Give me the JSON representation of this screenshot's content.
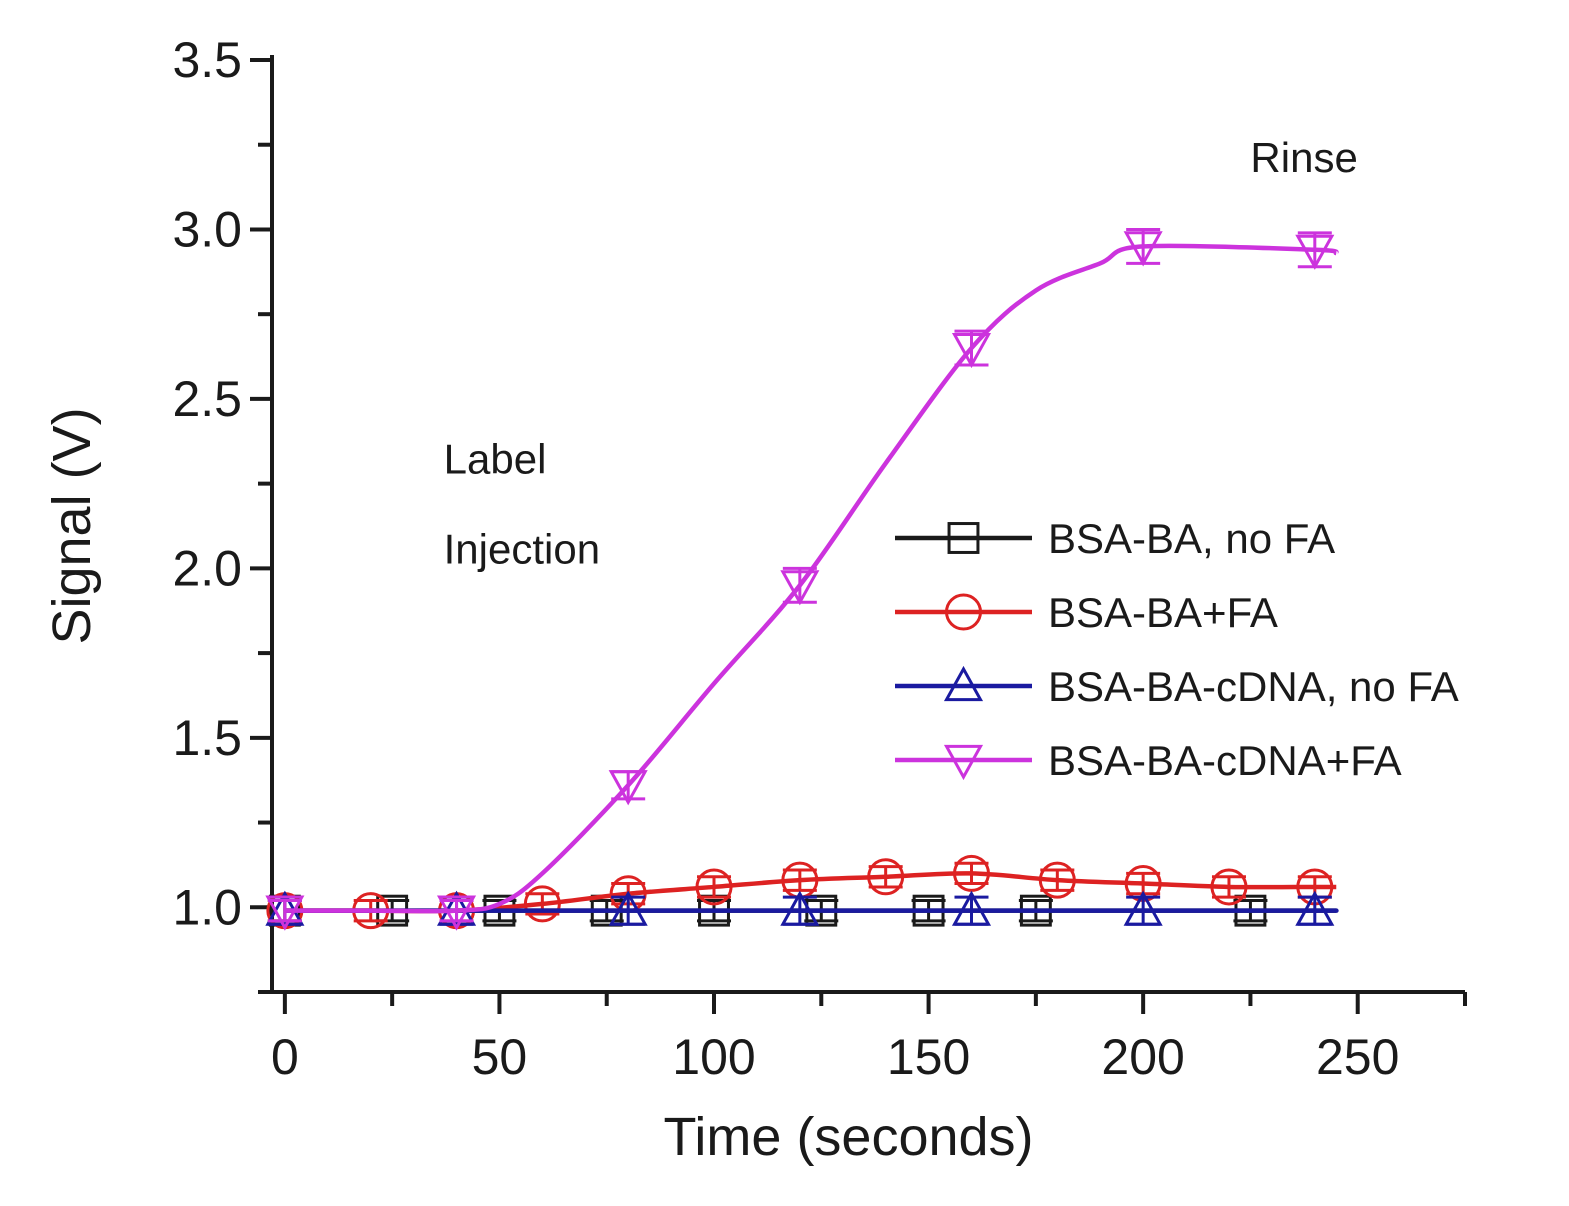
{
  "chart_data": {
    "type": "line",
    "title": "",
    "xlabel": "Time (seconds)",
    "ylabel": "Signal (V)",
    "xlim": [
      -3,
      275
    ],
    "ylim": [
      0.75,
      3.5
    ],
    "x_ticks": [
      0,
      50,
      100,
      150,
      200,
      250
    ],
    "x_tick_labels": [
      "0",
      "50",
      "100",
      "150",
      "200",
      "250"
    ],
    "y_ticks": [
      1.0,
      1.5,
      2.0,
      2.5,
      3.0,
      3.5
    ],
    "y_tick_labels": [
      "1.0",
      "1.5",
      "2.0",
      "2.5",
      "3.0",
      "3.5"
    ],
    "grid": false,
    "legend_position": "center-right",
    "annotations": [
      {
        "id": "label-injection",
        "lines": [
          "Label",
          "Injection"
        ],
        "x": 37,
        "y": 2.28
      },
      {
        "id": "rinse",
        "lines": [
          "Rinse"
        ],
        "x": 225,
        "y": 3.17
      }
    ],
    "series": [
      {
        "name": "BSA-BA, no FA",
        "color": "#1a1a1a",
        "marker": "square",
        "x": [
          0,
          25,
          50,
          75,
          100,
          125,
          150,
          175,
          200,
          225,
          240,
          245
        ],
        "y": [
          0.99,
          0.99,
          0.99,
          0.99,
          0.99,
          0.99,
          0.99,
          0.99,
          0.99,
          0.99,
          0.99,
          0.99
        ],
        "err": [
          0.03,
          0.03,
          0.03,
          0.03,
          0.03,
          0.03,
          0.03,
          0.03,
          0.03,
          0.03,
          0.03,
          0.03
        ],
        "marker_x": [
          0,
          25,
          50,
          75,
          100,
          125,
          150,
          175,
          225
        ]
      },
      {
        "name": "BSA-BA+FA",
        "color": "#dd2222",
        "marker": "circle",
        "x": [
          0,
          20,
          40,
          60,
          80,
          100,
          120,
          140,
          160,
          180,
          200,
          220,
          240,
          245
        ],
        "y": [
          0.99,
          0.99,
          0.99,
          1.01,
          1.04,
          1.06,
          1.08,
          1.09,
          1.1,
          1.08,
          1.07,
          1.06,
          1.06,
          1.06
        ],
        "err": [
          0.03,
          0.03,
          0.03,
          0.03,
          0.03,
          0.03,
          0.03,
          0.03,
          0.03,
          0.03,
          0.03,
          0.03,
          0.03,
          0.03
        ],
        "marker_x": [
          0,
          20,
          40,
          60,
          80,
          100,
          120,
          140,
          160,
          180,
          200,
          220,
          240
        ]
      },
      {
        "name": "BSA-BA-cDNA, no FA",
        "color": "#1a1aa0",
        "marker": "triangle-up",
        "x": [
          0,
          40,
          80,
          120,
          160,
          200,
          240,
          245
        ],
        "y": [
          0.99,
          0.99,
          0.99,
          0.99,
          0.99,
          0.99,
          0.99,
          0.99
        ],
        "err": [
          0.04,
          0.04,
          0.04,
          0.04,
          0.04,
          0.04,
          0.04,
          0.04
        ],
        "marker_x": [
          0,
          40,
          80,
          120,
          160,
          200,
          240
        ]
      },
      {
        "name": "BSA-BA-cDNA+FA",
        "color": "#cc33dd",
        "marker": "triangle-down",
        "x": [
          0,
          20,
          40,
          50,
          60,
          80,
          100,
          120,
          140,
          160,
          175,
          190,
          200,
          240,
          245
        ],
        "y": [
          0.99,
          0.99,
          0.99,
          1.01,
          1.1,
          1.36,
          1.66,
          1.95,
          2.31,
          2.65,
          2.82,
          2.9,
          2.95,
          2.94,
          2.93
        ],
        "err": [
          0.03,
          0.03,
          0.03,
          0.03,
          0.04,
          0.04,
          0.04,
          0.05,
          0.05,
          0.05,
          0.04,
          0.04,
          0.05,
          0.05,
          0.05
        ],
        "marker_x": [
          0,
          40,
          80,
          120,
          160,
          200,
          240
        ]
      }
    ]
  }
}
